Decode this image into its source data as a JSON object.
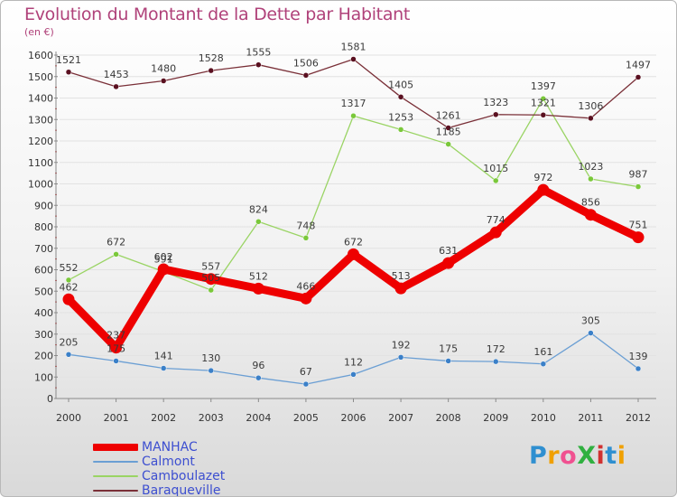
{
  "title": "Evolution du Montant de la Dette par Habitant",
  "unit_label": "(en €)",
  "logo": {
    "text": "ProXiti",
    "letter_colors": [
      "#2f8fd0",
      "#f0a000",
      "#f05090",
      "#30b040",
      "#d03030",
      "#2f8fd0",
      "#f0a000"
    ]
  },
  "colors": {
    "title": "#b0427a",
    "axis_text": "#333333",
    "grid": "#e2e2e2",
    "axis": "#8a8a8a",
    "legend_text": "#3d4fd0"
  },
  "chart_data": {
    "type": "line",
    "title": "Evolution du Montant de la Dette par Habitant",
    "ylabel": "(en €)",
    "xlabel": "",
    "x": [
      "2000",
      "2001",
      "2002",
      "2003",
      "2004",
      "2005",
      "2006",
      "2007",
      "2008",
      "2009",
      "2010",
      "2011",
      "2012"
    ],
    "ylim": [
      0,
      1600
    ],
    "yticks": [
      0,
      100,
      200,
      300,
      400,
      500,
      600,
      700,
      800,
      900,
      1000,
      1100,
      1200,
      1300,
      1400,
      1500,
      1600
    ],
    "grid": true,
    "legend_position": "bottom-left",
    "series": [
      {
        "name": "MANHAC",
        "color": "#ee0000",
        "marker_color": "#ee0000",
        "emphasis": true,
        "values": [
          462,
          237,
          602,
          557,
          512,
          466,
          672,
          513,
          631,
          774,
          972,
          856,
          751
        ],
        "labels": [
          "462",
          "237",
          "602",
          "557",
          "512",
          "466",
          "672",
          "513",
          "631",
          "774",
          "972",
          "856",
          "751"
        ]
      },
      {
        "name": "Calmont",
        "color": "#6b9fd4",
        "marker_color": "#3b80c8",
        "values": [
          205,
          175,
          141,
          130,
          96,
          67,
          112,
          192,
          175,
          172,
          161,
          305,
          139
        ],
        "labels": [
          "205",
          "175",
          "141",
          "130",
          "96",
          "67",
          "112",
          "192",
          "175",
          "172",
          "161",
          "305",
          "139"
        ]
      },
      {
        "name": "Camboulazet",
        "color": "#9ad464",
        "marker_color": "#7ac83a",
        "values": [
          552,
          672,
          591,
          505,
          824,
          748,
          1317,
          1253,
          1185,
          1015,
          1397,
          1023,
          987
        ],
        "labels": [
          "552",
          "672",
          "591",
          "505",
          "824",
          "748",
          "1317",
          "1253",
          "1185",
          "1015",
          "1397",
          "1023",
          "987"
        ]
      },
      {
        "name": "Baraqueville",
        "color": "#7a3038",
        "marker_color": "#5a1020",
        "values": [
          1521,
          1453,
          1480,
          1528,
          1555,
          1506,
          1581,
          1405,
          1261,
          1323,
          1321,
          1306,
          1497
        ],
        "labels": [
          "1521",
          "1453",
          "1480",
          "1528",
          "1555",
          "1506",
          "1581",
          "1405",
          "1261",
          "1323",
          "1321",
          "1306",
          "1497"
        ]
      }
    ]
  }
}
